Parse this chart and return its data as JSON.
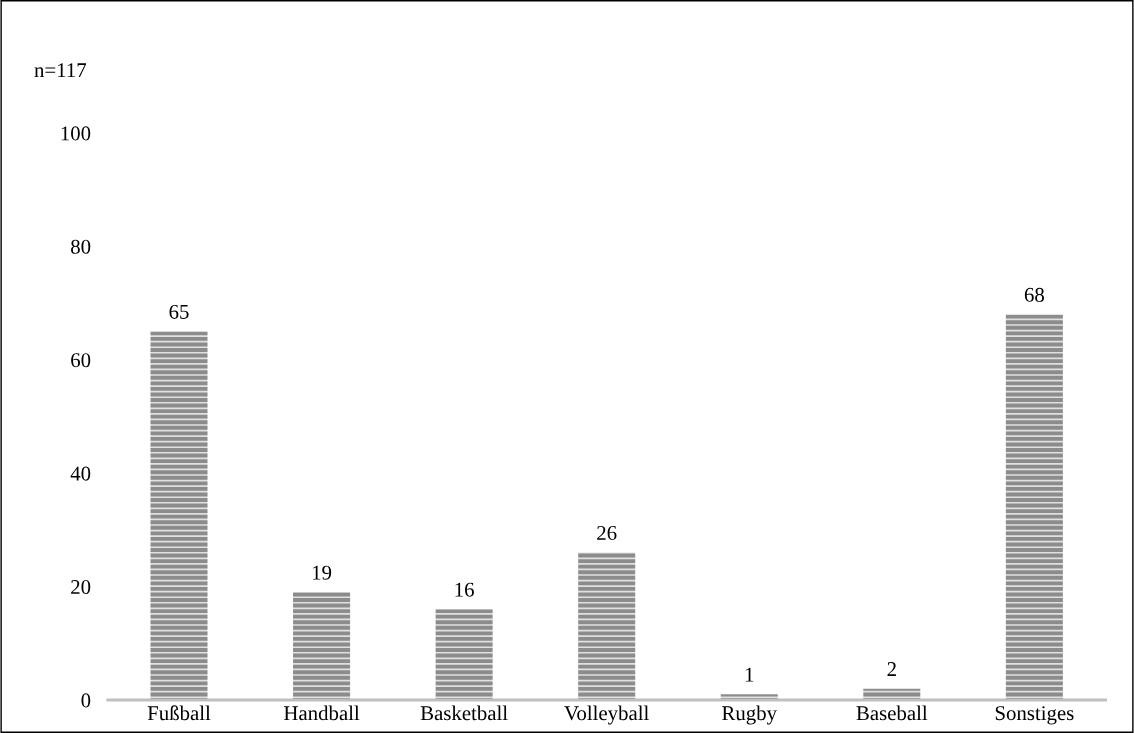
{
  "chart_data": {
    "type": "bar",
    "categories": [
      "Fußball",
      "Handball",
      "Basketball",
      "Volleyball",
      "Rugby",
      "Baseball",
      "Sonstiges"
    ],
    "values": [
      65,
      19,
      16,
      26,
      1,
      2,
      68
    ],
    "color": "#8c8c8c",
    "ylim": [
      0,
      100
    ],
    "yticks": [
      0,
      20,
      40,
      60,
      80,
      100
    ],
    "grid": false,
    "data_labels": true,
    "annotations": [
      "n=117"
    ]
  }
}
